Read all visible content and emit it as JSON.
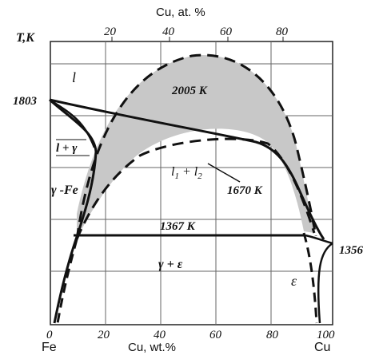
{
  "diagram": {
    "top_axis": {
      "title": "Cu, at. %",
      "ticks": [
        "20",
        "40",
        "60",
        "80"
      ]
    },
    "bottom_axis": {
      "title": "Cu, wt.%",
      "ticks": [
        "0",
        "20",
        "40",
        "60",
        "80",
        "100"
      ],
      "left_element": "Fe",
      "right_element": "Cu"
    },
    "y_axis_label": "T,K",
    "temperatures": {
      "fe_melting": "1803",
      "cu_melting": "1356",
      "miscibility_max": "2005 K",
      "monotectic": "1670 K",
      "peritectic": "1367 K"
    },
    "phase_labels": {
      "liquid": "l",
      "liquid_gamma": "l + γ",
      "gamma_fe": "γ -Fe",
      "two_liquids": "l",
      "two_liquids_sub1": "1",
      "two_liquids_plus": " + l",
      "two_liquids_sub2": "2",
      "gamma_epsilon": "γ + ε",
      "epsilon": "ε"
    },
    "colors": {
      "miscibility_gap_fill": "#c8c8c8",
      "line": "#111111",
      "grid": "#666666"
    }
  }
}
